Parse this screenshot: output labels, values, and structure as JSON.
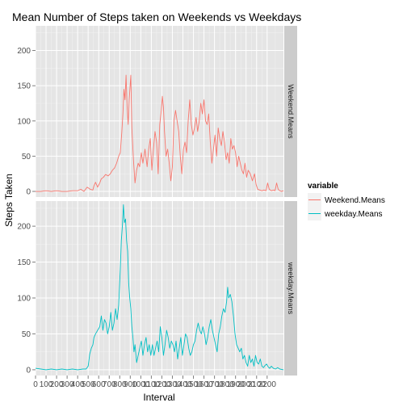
{
  "chart_data": {
    "type": "line",
    "title": "Mean Number of Steps taken on Weekends vs Weekdays",
    "xlabel": "Interval",
    "ylabel": "Steps Taken",
    "xlim": [
      0,
      2355
    ],
    "x_ticks": [
      "0",
      "100",
      "200",
      "300",
      "400",
      "500",
      "600",
      "700",
      "800",
      "900",
      "1000",
      "1100",
      "1200",
      "1300",
      "1400",
      "1500",
      "1600",
      "1700",
      "1800",
      "1900",
      "2000",
      "2100",
      "2200"
    ],
    "y_ticks": [
      "0",
      "50",
      "100",
      "150",
      "200"
    ],
    "ylim": [
      -8,
      235
    ],
    "grid": true,
    "legend": {
      "title": "variable",
      "position": "right"
    },
    "facets": [
      "Weekend.Means",
      "weekday.Means"
    ],
    "series": [
      {
        "name": "Weekend.Means",
        "color": "#F8766D",
        "points": [
          [
            0,
            0
          ],
          [
            50,
            0
          ],
          [
            100,
            1
          ],
          [
            150,
            0
          ],
          [
            200,
            1
          ],
          [
            250,
            0
          ],
          [
            300,
            0
          ],
          [
            350,
            1
          ],
          [
            400,
            1
          ],
          [
            430,
            3
          ],
          [
            460,
            0
          ],
          [
            490,
            6
          ],
          [
            520,
            3
          ],
          [
            545,
            2
          ],
          [
            555,
            8
          ],
          [
            570,
            13
          ],
          [
            590,
            6
          ],
          [
            610,
            12
          ],
          [
            625,
            18
          ],
          [
            645,
            20
          ],
          [
            665,
            24
          ],
          [
            690,
            22
          ],
          [
            710,
            25
          ],
          [
            730,
            30
          ],
          [
            750,
            33
          ],
          [
            770,
            40
          ],
          [
            790,
            50
          ],
          [
            805,
            55
          ],
          [
            820,
            85
          ],
          [
            830,
            110
          ],
          [
            840,
            145
          ],
          [
            850,
            130
          ],
          [
            860,
            165
          ],
          [
            870,
            120
          ],
          [
            880,
            95
          ],
          [
            890,
            130
          ],
          [
            905,
            165
          ],
          [
            915,
            90
          ],
          [
            930,
            45
          ],
          [
            945,
            12
          ],
          [
            960,
            30
          ],
          [
            975,
            40
          ],
          [
            990,
            35
          ],
          [
            1005,
            55
          ],
          [
            1020,
            40
          ],
          [
            1040,
            60
          ],
          [
            1060,
            35
          ],
          [
            1075,
            60
          ],
          [
            1090,
            75
          ],
          [
            1105,
            30
          ],
          [
            1120,
            60
          ],
          [
            1135,
            85
          ],
          [
            1150,
            70
          ],
          [
            1165,
            25
          ],
          [
            1180,
            95
          ],
          [
            1195,
            115
          ],
          [
            1205,
            135
          ],
          [
            1215,
            120
          ],
          [
            1225,
            85
          ],
          [
            1240,
            50
          ],
          [
            1255,
            60
          ],
          [
            1270,
            40
          ],
          [
            1285,
            15
          ],
          [
            1300,
            35
          ],
          [
            1315,
            100
          ],
          [
            1330,
            115
          ],
          [
            1345,
            100
          ],
          [
            1360,
            85
          ],
          [
            1375,
            50
          ],
          [
            1390,
            25
          ],
          [
            1405,
            60
          ],
          [
            1420,
            70
          ],
          [
            1435,
            55
          ],
          [
            1450,
            100
          ],
          [
            1465,
            130
          ],
          [
            1480,
            95
          ],
          [
            1495,
            80
          ],
          [
            1510,
            90
          ],
          [
            1525,
            105
          ],
          [
            1540,
            85
          ],
          [
            1555,
            100
          ],
          [
            1570,
            125
          ],
          [
            1585,
            110
          ],
          [
            1600,
            130
          ],
          [
            1615,
            100
          ],
          [
            1630,
            95
          ],
          [
            1645,
            110
          ],
          [
            1660,
            70
          ],
          [
            1675,
            40
          ],
          [
            1690,
            60
          ],
          [
            1705,
            80
          ],
          [
            1720,
            50
          ],
          [
            1735,
            90
          ],
          [
            1750,
            75
          ],
          [
            1765,
            65
          ],
          [
            1780,
            85
          ],
          [
            1795,
            70
          ],
          [
            1810,
            45
          ],
          [
            1825,
            55
          ],
          [
            1840,
            40
          ],
          [
            1855,
            75
          ],
          [
            1870,
            60
          ],
          [
            1885,
            65
          ],
          [
            1900,
            55
          ],
          [
            1915,
            35
          ],
          [
            1930,
            50
          ],
          [
            1945,
            40
          ],
          [
            1960,
            30
          ],
          [
            1975,
            25
          ],
          [
            1990,
            40
          ],
          [
            2005,
            20
          ],
          [
            2020,
            30
          ],
          [
            2040,
            25
          ],
          [
            2060,
            15
          ],
          [
            2080,
            25
          ],
          [
            2095,
            10
          ],
          [
            2110,
            3
          ],
          [
            2130,
            2
          ],
          [
            2150,
            1
          ],
          [
            2170,
            2
          ],
          [
            2190,
            1
          ],
          [
            2205,
            12
          ],
          [
            2220,
            3
          ],
          [
            2240,
            1
          ],
          [
            2260,
            2
          ],
          [
            2275,
            1
          ],
          [
            2290,
            12
          ],
          [
            2305,
            3
          ],
          [
            2320,
            1
          ],
          [
            2335,
            0
          ],
          [
            2355,
            1
          ]
        ]
      },
      {
        "name": "weekday.Means",
        "color": "#00BFC4",
        "points": [
          [
            0,
            2
          ],
          [
            50,
            1
          ],
          [
            100,
            0
          ],
          [
            150,
            1
          ],
          [
            200,
            0
          ],
          [
            250,
            1
          ],
          [
            300,
            0
          ],
          [
            350,
            1
          ],
          [
            400,
            0
          ],
          [
            450,
            1
          ],
          [
            480,
            1
          ],
          [
            500,
            5
          ],
          [
            515,
            22
          ],
          [
            530,
            30
          ],
          [
            545,
            35
          ],
          [
            555,
            45
          ],
          [
            570,
            50
          ],
          [
            590,
            55
          ],
          [
            610,
            60
          ],
          [
            625,
            75
          ],
          [
            640,
            55
          ],
          [
            655,
            70
          ],
          [
            670,
            65
          ],
          [
            685,
            50
          ],
          [
            700,
            60
          ],
          [
            715,
            80
          ],
          [
            730,
            55
          ],
          [
            745,
            65
          ],
          [
            760,
            85
          ],
          [
            775,
            70
          ],
          [
            790,
            90
          ],
          [
            805,
            140
          ],
          [
            815,
            180
          ],
          [
            825,
            200
          ],
          [
            835,
            230
          ],
          [
            845,
            205
          ],
          [
            855,
            210
          ],
          [
            865,
            180
          ],
          [
            875,
            165
          ],
          [
            885,
            120
          ],
          [
            895,
            100
          ],
          [
            905,
            85
          ],
          [
            915,
            60
          ],
          [
            925,
            45
          ],
          [
            935,
            25
          ],
          [
            945,
            35
          ],
          [
            960,
            10
          ],
          [
            975,
            20
          ],
          [
            990,
            30
          ],
          [
            1005,
            40
          ],
          [
            1020,
            20
          ],
          [
            1035,
            35
          ],
          [
            1050,
            45
          ],
          [
            1065,
            25
          ],
          [
            1080,
            35
          ],
          [
            1095,
            20
          ],
          [
            1110,
            35
          ],
          [
            1125,
            20
          ],
          [
            1140,
            30
          ],
          [
            1155,
            40
          ],
          [
            1170,
            25
          ],
          [
            1185,
            60
          ],
          [
            1200,
            45
          ],
          [
            1215,
            20
          ],
          [
            1230,
            35
          ],
          [
            1245,
            55
          ],
          [
            1260,
            45
          ],
          [
            1275,
            30
          ],
          [
            1290,
            40
          ],
          [
            1305,
            35
          ],
          [
            1320,
            25
          ],
          [
            1335,
            40
          ],
          [
            1350,
            15
          ],
          [
            1365,
            30
          ],
          [
            1380,
            45
          ],
          [
            1395,
            20
          ],
          [
            1410,
            35
          ],
          [
            1425,
            50
          ],
          [
            1440,
            45
          ],
          [
            1455,
            30
          ],
          [
            1470,
            20
          ],
          [
            1485,
            25
          ],
          [
            1500,
            35
          ],
          [
            1515,
            40
          ],
          [
            1530,
            55
          ],
          [
            1545,
            65
          ],
          [
            1560,
            55
          ],
          [
            1575,
            50
          ],
          [
            1590,
            60
          ],
          [
            1605,
            50
          ],
          [
            1620,
            35
          ],
          [
            1635,
            45
          ],
          [
            1650,
            60
          ],
          [
            1665,
            70
          ],
          [
            1680,
            55
          ],
          [
            1695,
            45
          ],
          [
            1710,
            35
          ],
          [
            1725,
            25
          ],
          [
            1740,
            50
          ],
          [
            1755,
            60
          ],
          [
            1770,
            75
          ],
          [
            1785,
            85
          ],
          [
            1800,
            80
          ],
          [
            1815,
            95
          ],
          [
            1825,
            115
          ],
          [
            1835,
            100
          ],
          [
            1850,
            105
          ],
          [
            1865,
            95
          ],
          [
            1880,
            75
          ],
          [
            1895,
            50
          ],
          [
            1910,
            35
          ],
          [
            1925,
            30
          ],
          [
            1940,
            25
          ],
          [
            1955,
            30
          ],
          [
            1970,
            15
          ],
          [
            1985,
            20
          ],
          [
            2000,
            10
          ],
          [
            2015,
            5
          ],
          [
            2030,
            20
          ],
          [
            2045,
            10
          ],
          [
            2060,
            15
          ],
          [
            2075,
            5
          ],
          [
            2090,
            20
          ],
          [
            2105,
            10
          ],
          [
            2120,
            8
          ],
          [
            2135,
            15
          ],
          [
            2150,
            5
          ],
          [
            2165,
            3
          ],
          [
            2180,
            6
          ],
          [
            2195,
            8
          ],
          [
            2210,
            4
          ],
          [
            2225,
            2
          ],
          [
            2240,
            5
          ],
          [
            2260,
            2
          ],
          [
            2280,
            1
          ],
          [
            2300,
            3
          ],
          [
            2320,
            1
          ],
          [
            2355,
            0
          ]
        ]
      }
    ]
  }
}
